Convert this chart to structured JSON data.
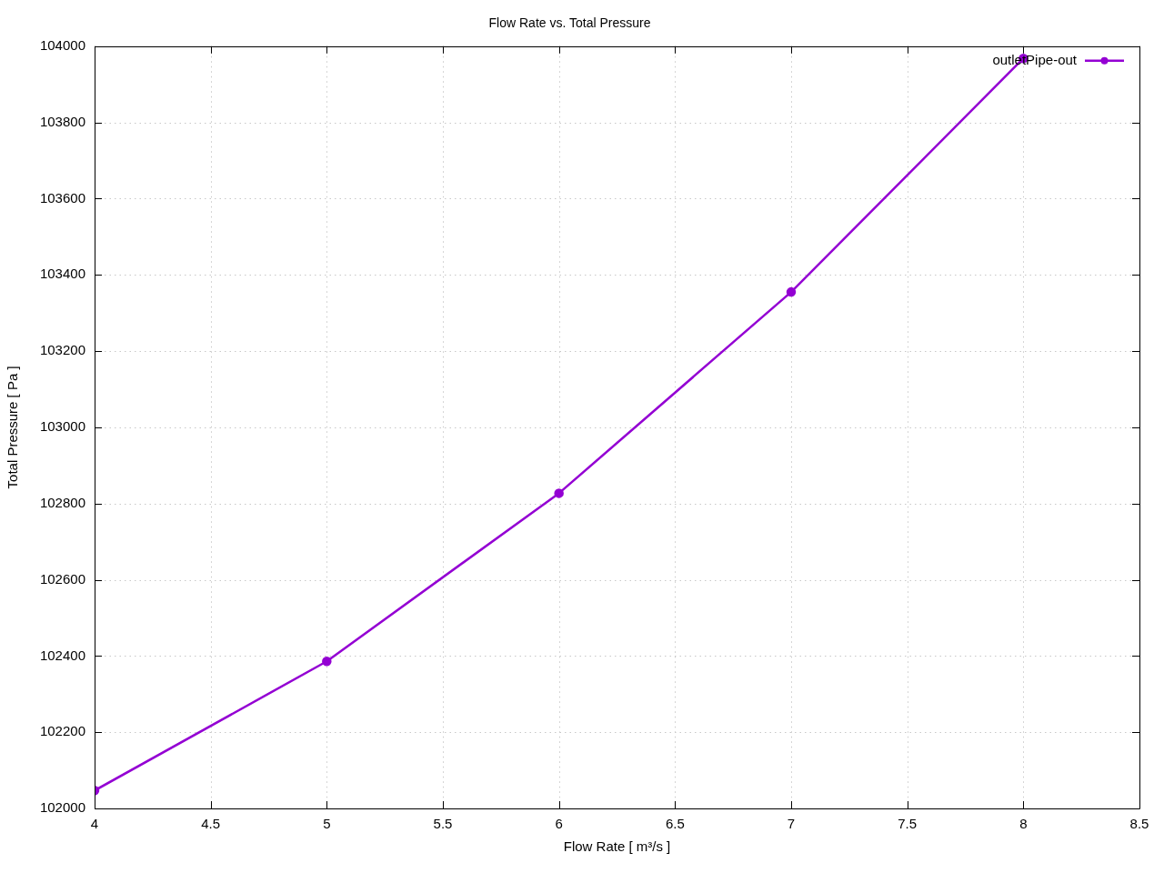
{
  "chart_data": {
    "type": "line",
    "title": "Flow Rate vs. Total Pressure",
    "xlabel": "Flow Rate [ m³/s ]",
    "ylabel": "Total Pressure [ Pa ]",
    "x": [
      4,
      5,
      6,
      7,
      8
    ],
    "series": [
      {
        "name": "outletPipe-out",
        "color": "#9400d3",
        "values": [
          102047,
          102386,
          102827,
          103355,
          103968
        ]
      }
    ],
    "xlim": [
      4,
      8.5
    ],
    "xticks": [
      4,
      4.5,
      5,
      5.5,
      6,
      6.5,
      7,
      7.5,
      8,
      8.5
    ],
    "ylim": [
      102000,
      104000
    ],
    "yticks": [
      102000,
      102200,
      102400,
      102600,
      102800,
      103000,
      103200,
      103400,
      103600,
      103800,
      104000
    ],
    "grid": true,
    "legend": "top right",
    "marker": "circle",
    "line_style": "solid"
  }
}
